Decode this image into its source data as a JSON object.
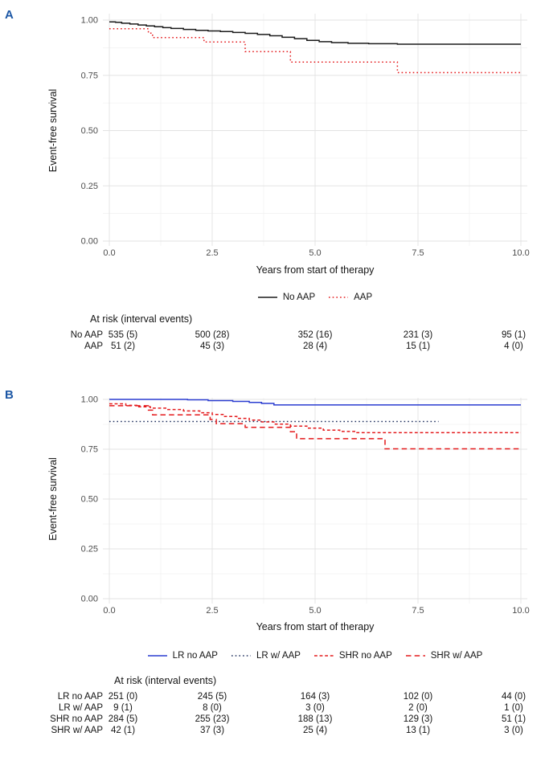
{
  "chart_data": [
    {
      "type": "line",
      "curve": "step",
      "panel_label": "A",
      "xlabel": "Years from start of therapy",
      "ylabel": "Event-free survival",
      "xlim": [
        0,
        10
      ],
      "ylim": [
        0,
        1
      ],
      "x_ticks": [
        0,
        2.5,
        5,
        7.5,
        10
      ],
      "x_tick_labels": [
        "0.0",
        "2.5",
        "5.0",
        "7.5",
        "10.0"
      ],
      "y_ticks": [
        0,
        0.25,
        0.5,
        0.75,
        1
      ],
      "y_tick_labels": [
        "0.00",
        "0.25",
        "0.50",
        "0.75",
        "1.00"
      ],
      "grid": true,
      "legend_position": "bottom",
      "series": [
        {
          "name": "No AAP",
          "color": "#1a1a1a",
          "dash": "solid",
          "points": [
            [
              0,
              0.992
            ],
            [
              0.15,
              0.99
            ],
            [
              0.3,
              0.986
            ],
            [
              0.5,
              0.982
            ],
            [
              0.7,
              0.978
            ],
            [
              0.9,
              0.974
            ],
            [
              1.1,
              0.97
            ],
            [
              1.3,
              0.966
            ],
            [
              1.5,
              0.962
            ],
            [
              1.8,
              0.958
            ],
            [
              2.1,
              0.954
            ],
            [
              2.4,
              0.951
            ],
            [
              2.7,
              0.948
            ],
            [
              3,
              0.944
            ],
            [
              3.3,
              0.94
            ],
            [
              3.6,
              0.935
            ],
            [
              3.9,
              0.929
            ],
            [
              4.2,
              0.922
            ],
            [
              4.5,
              0.916
            ],
            [
              4.8,
              0.908
            ],
            [
              5.1,
              0.902
            ],
            [
              5.4,
              0.898
            ],
            [
              5.8,
              0.895
            ],
            [
              6.3,
              0.893
            ],
            [
              7,
              0.891
            ],
            [
              10,
              0.891
            ]
          ]
        },
        {
          "name": "AAP",
          "color": "#e41a1c",
          "dash": "dotted",
          "points": [
            [
              0,
              0.961
            ],
            [
              0.95,
              0.941
            ],
            [
              1.05,
              0.921
            ],
            [
              2.3,
              0.901
            ],
            [
              3.3,
              0.857
            ],
            [
              4.4,
              0.81
            ],
            [
              7,
              0.762
            ],
            [
              10,
              0.762
            ]
          ]
        }
      ],
      "risk_table": {
        "title": "At risk (interval events)",
        "time_points": [
          0,
          2.5,
          5,
          7.5,
          10
        ],
        "rows": [
          {
            "label": "No AAP",
            "values": [
              "535 (5)",
              "500 (28)",
              "352 (16)",
              "231 (3)",
              "95 (1)"
            ]
          },
          {
            "label": "AAP",
            "values": [
              "51 (2)",
              "45 (3)",
              "28 (4)",
              "15 (1)",
              "4 (0)"
            ]
          }
        ]
      }
    },
    {
      "type": "line",
      "curve": "step",
      "panel_label": "B",
      "xlabel": "Years from start of therapy",
      "ylabel": "Event-free survival",
      "xlim": [
        0,
        10
      ],
      "ylim": [
        0,
        1
      ],
      "x_ticks": [
        0,
        2.5,
        5,
        7.5,
        10
      ],
      "x_tick_labels": [
        "0.0",
        "2.5",
        "5.0",
        "7.5",
        "10.0"
      ],
      "y_ticks": [
        0,
        0.25,
        0.5,
        0.75,
        1
      ],
      "y_tick_labels": [
        "0.00",
        "0.25",
        "0.50",
        "0.75",
        "1.00"
      ],
      "grid": true,
      "legend_position": "bottom",
      "series": [
        {
          "name": "LR no AAP",
          "color": "#2a3cd0",
          "dash": "solid",
          "points": [
            [
              0,
              1
            ],
            [
              1.9,
              0.998
            ],
            [
              2.4,
              0.994
            ],
            [
              3,
              0.99
            ],
            [
              3.4,
              0.985
            ],
            [
              3.7,
              0.98
            ],
            [
              4,
              0.972
            ],
            [
              10,
              0.972
            ]
          ]
        },
        {
          "name": "LR w/ AAP",
          "color": "#20315f",
          "dash": "dotted",
          "points": [
            [
              0,
              0.889
            ],
            [
              8,
              0.889
            ]
          ]
        },
        {
          "name": "SHR no AAP",
          "color": "#e41a1c",
          "dash": "finedash",
          "points": [
            [
              0,
              0.978
            ],
            [
              0.4,
              0.97
            ],
            [
              0.7,
              0.963
            ],
            [
              1,
              0.956
            ],
            [
              1.4,
              0.949
            ],
            [
              1.8,
              0.942
            ],
            [
              2.2,
              0.933
            ],
            [
              2.5,
              0.924
            ],
            [
              2.8,
              0.914
            ],
            [
              3.1,
              0.905
            ],
            [
              3.4,
              0.896
            ],
            [
              3.7,
              0.887
            ],
            [
              4,
              0.876
            ],
            [
              4.4,
              0.866
            ],
            [
              4.8,
              0.856
            ],
            [
              5.2,
              0.846
            ],
            [
              5.6,
              0.839
            ],
            [
              6,
              0.833
            ],
            [
              10,
              0.833
            ]
          ]
        },
        {
          "name": "SHR w/ AAP",
          "color": "#e41a1c",
          "dash": "dashed",
          "points": [
            [
              0,
              0.968
            ],
            [
              0.95,
              0.946
            ],
            [
              1.05,
              0.922
            ],
            [
              2.45,
              0.899
            ],
            [
              2.6,
              0.878
            ],
            [
              3.3,
              0.86
            ],
            [
              4.4,
              0.838
            ],
            [
              4.55,
              0.803
            ],
            [
              6.7,
              0.752
            ],
            [
              10,
              0.752
            ]
          ]
        }
      ],
      "risk_table": {
        "title": "At risk (interval events)",
        "time_points": [
          0,
          2.5,
          5,
          7.5,
          10
        ],
        "rows": [
          {
            "label": "LR no AAP",
            "values": [
              "251 (0)",
              "245 (5)",
              "164 (3)",
              "102 (0)",
              "44 (0)"
            ]
          },
          {
            "label": "LR w/ AAP",
            "values": [
              "9 (1)",
              "8 (0)",
              "3 (0)",
              "2 (0)",
              "1 (0)"
            ]
          },
          {
            "label": "SHR no AAP",
            "values": [
              "284 (5)",
              "255 (23)",
              "188 (13)",
              "129 (3)",
              "51 (1)"
            ]
          },
          {
            "label": "SHR w/ AAP",
            "values": [
              "42 (1)",
              "37 (3)",
              "25 (4)",
              "13 (1)",
              "3 (0)"
            ]
          }
        ]
      }
    }
  ]
}
